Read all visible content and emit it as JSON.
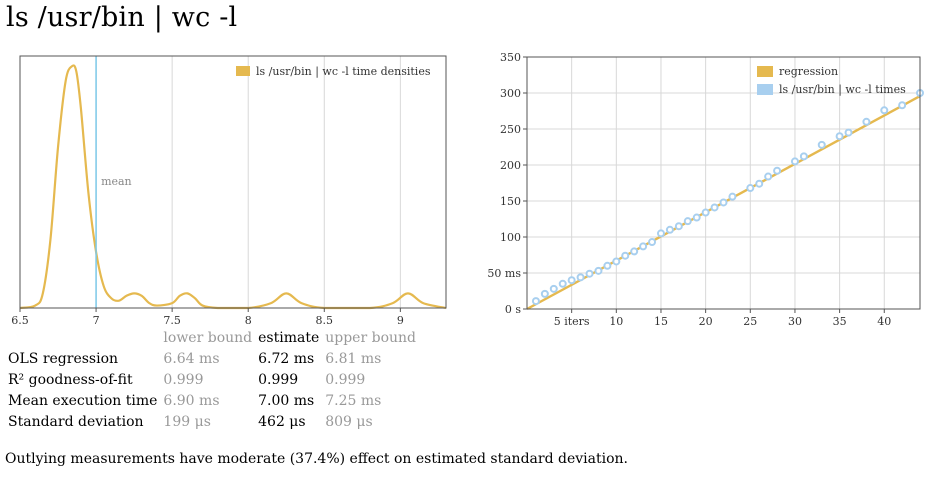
{
  "page_title": "ls /usr/bin | wc -l",
  "stats": {
    "headers": [
      "",
      "lower bound",
      "estimate",
      "upper bound"
    ],
    "rows": [
      {
        "label": "OLS regression",
        "lower": "6.64 ms",
        "estimate": "6.72 ms",
        "upper": "6.81 ms"
      },
      {
        "label": "R² goodness-of-fit",
        "lower": "0.999",
        "estimate": "0.999",
        "upper": "0.999"
      },
      {
        "label": "Mean execution time",
        "lower": "6.90 ms",
        "estimate": "7.00 ms",
        "upper": "7.25 ms"
      },
      {
        "label": "Standard deviation",
        "lower": "199 μs",
        "estimate": "462 μs",
        "upper": "809 μs"
      }
    ]
  },
  "note": "Outlying measurements have moderate (37.4%) effect on estimated standard deviation.",
  "colors": {
    "density": "#e5b94f",
    "regression": "#e5b94f",
    "samples": "#a8cfef",
    "mean": "#7cc8e8",
    "grid": "#d8d8d8"
  },
  "chart_data": [
    {
      "type": "line",
      "xlim": [
        6.5,
        9.3
      ],
      "ylim": [
        0,
        1
      ],
      "x_ticks": [
        6.5,
        7,
        7.5,
        8,
        8.5,
        9
      ],
      "x_tick_labels": [
        "6.5",
        "7",
        "7.5",
        "8",
        "8.5",
        "9"
      ],
      "legend": "top-right",
      "grid": "vertical",
      "series": [
        {
          "name": "ls /usr/bin | wc -l time densities",
          "x": [
            6.5,
            6.6,
            6.65,
            6.7,
            6.75,
            6.8,
            6.84,
            6.87,
            6.9,
            6.95,
            7.0,
            7.05,
            7.1,
            7.15,
            7.2,
            7.25,
            7.3,
            7.35,
            7.4,
            7.5,
            7.55,
            7.6,
            7.65,
            7.7,
            7.8,
            8.0,
            8.15,
            8.25,
            8.35,
            8.5,
            8.8,
            8.95,
            9.05,
            9.15,
            9.3
          ],
          "y": [
            0.0,
            0.01,
            0.06,
            0.28,
            0.66,
            0.93,
            0.99,
            0.97,
            0.82,
            0.47,
            0.23,
            0.09,
            0.04,
            0.03,
            0.05,
            0.06,
            0.05,
            0.02,
            0.01,
            0.02,
            0.05,
            0.06,
            0.04,
            0.01,
            0.0,
            0.0,
            0.02,
            0.06,
            0.02,
            0.0,
            0.0,
            0.02,
            0.06,
            0.02,
            0.0
          ]
        }
      ],
      "annotations": [
        {
          "x": 7.0,
          "text": "mean"
        }
      ]
    },
    {
      "type": "scatter",
      "xlim": [
        0,
        44
      ],
      "ylim": [
        0,
        350
      ],
      "x_ticks": [
        5,
        10,
        15,
        20,
        25,
        30,
        35,
        40
      ],
      "x_tick_labels": [
        "5 iters",
        "10",
        "15",
        "20",
        "25",
        "30",
        "35",
        "40"
      ],
      "y_ticks": [
        0,
        50,
        100,
        150,
        200,
        250,
        300,
        350
      ],
      "y_tick_labels": [
        "0 s",
        "50 ms",
        "100",
        "150",
        "200",
        "250",
        "300",
        "350"
      ],
      "legend": "top-right",
      "grid": "both",
      "regression": {
        "name": "regression",
        "slope": 6.72,
        "intercept": 0
      },
      "series": [
        {
          "name": "ls /usr/bin | wc -l times",
          "x": [
            1,
            2,
            3,
            4,
            5,
            6,
            7,
            8,
            9,
            10,
            11,
            12,
            13,
            14,
            15,
            16,
            17,
            18,
            19,
            20,
            21,
            22,
            23,
            25,
            26,
            27,
            28,
            30,
            31,
            33,
            35,
            36,
            38,
            40,
            42,
            44
          ],
          "y": [
            11,
            21,
            28,
            35,
            40,
            44,
            49,
            53,
            60,
            66,
            74,
            80,
            87,
            93,
            105,
            110,
            115,
            122,
            127,
            134,
            141,
            148,
            156,
            168,
            174,
            184,
            192,
            205,
            212,
            228,
            240,
            245,
            260,
            276,
            283,
            300
          ]
        }
      ]
    }
  ]
}
